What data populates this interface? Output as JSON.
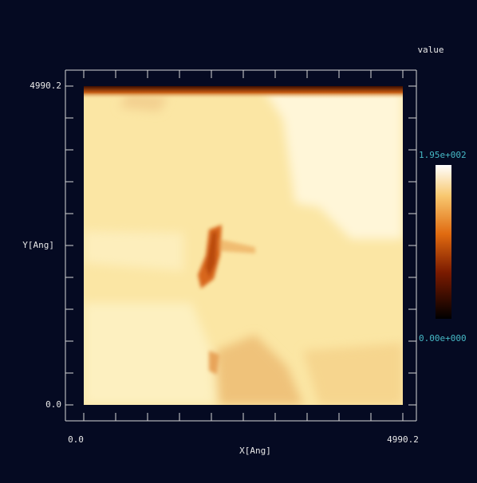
{
  "chart_data": {
    "type": "heatmap",
    "xlabel": "X[Ang]",
    "ylabel": "Y[Ang]",
    "xlim": [
      0,
      4990.2
    ],
    "ylim": [
      0,
      4990.2
    ],
    "xticks": [
      {
        "value": 0,
        "label": "0.0"
      },
      4990.2
    ],
    "yticks": [
      {
        "value": 0,
        "label": "0.0"
      },
      4990.2
    ],
    "colorbar_label": "value",
    "clim": [
      0,
      195
    ],
    "cticks": [
      {
        "value": 195,
        "label": "1.95e+002"
      },
      {
        "value": 0,
        "label": "0.00e+000"
      }
    ]
  }
}
